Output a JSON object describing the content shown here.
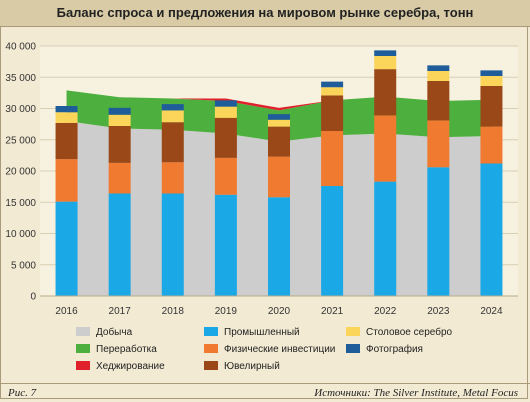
{
  "title": "Баланс спроса и предложения на мировом рынке серебра, тонн",
  "figure_label": "Рис. 7",
  "source": "Источники: The Silver Institute, Metal Focus",
  "colors": {
    "mining": "#cdcdcd",
    "recycling": "#4caf3e",
    "hedging": "#e0202a",
    "industrial": "#1ba8e6",
    "investment": "#f07a30",
    "jewelry": "#9b4818",
    "silverware": "#fbd45a",
    "photo": "#1f5d9a"
  },
  "legend": [
    {
      "key": "mining",
      "label": "Добыча"
    },
    {
      "key": "industrial",
      "label": "Промышленный"
    },
    {
      "key": "silverware",
      "label": "Столовое серебро"
    },
    {
      "key": "recycling",
      "label": "Переработка"
    },
    {
      "key": "investment",
      "label": "Физические инвестиции"
    },
    {
      "key": "photo",
      "label": "Фотография"
    },
    {
      "key": "hedging",
      "label": "Хеджирование"
    },
    {
      "key": "jewelry",
      "label": "Ювелирный"
    }
  ],
  "chart_data": {
    "type": "bar",
    "title": "Баланс спроса и предложения на мировом рынке серебра, тонн",
    "categories": [
      "2016",
      "2017",
      "2018",
      "2019",
      "2020",
      "2021",
      "2022",
      "2023",
      "2024"
    ],
    "ylim": [
      0,
      40000
    ],
    "yticks": [
      "0",
      "5 000",
      "10 000",
      "15 000",
      "20 000",
      "25 000",
      "30 000",
      "35 000",
      "40 000"
    ],
    "grid": true,
    "supply_series": [
      {
        "name": "Добыча",
        "key": "mining",
        "values": [
          28000,
          26800,
          26600,
          26000,
          24700,
          25700,
          26000,
          25400,
          25600
        ]
      },
      {
        "name": "Переработка",
        "key": "recycling",
        "values": [
          4900,
          5000,
          5000,
          5200,
          5000,
          5600,
          5900,
          5800,
          5800
        ]
      },
      {
        "name": "Хеджирование",
        "key": "hedging",
        "values": [
          0,
          0,
          0,
          400,
          400,
          0,
          0,
          0,
          0
        ]
      }
    ],
    "demand_series": [
      {
        "name": "Промышленный",
        "key": "industrial",
        "values": [
          15100,
          16400,
          16400,
          16200,
          15800,
          17600,
          18300,
          20600,
          21200
        ]
      },
      {
        "name": "Физические инвестиции",
        "key": "investment",
        "values": [
          6800,
          4900,
          5000,
          5900,
          6500,
          8800,
          10600,
          7500,
          5900
        ]
      },
      {
        "name": "Ювелирный",
        "key": "jewelry",
        "values": [
          5800,
          5900,
          6400,
          6400,
          4800,
          5700,
          7400,
          6300,
          6500
        ]
      },
      {
        "name": "Столовое серебро",
        "key": "silverware",
        "values": [
          1700,
          1800,
          1900,
          1800,
          1100,
          1300,
          2100,
          1600,
          1600
        ]
      },
      {
        "name": "Фотография",
        "key": "photo",
        "values": [
          1000,
          1100,
          1000,
          1000,
          900,
          900,
          900,
          900,
          900
        ]
      }
    ]
  }
}
